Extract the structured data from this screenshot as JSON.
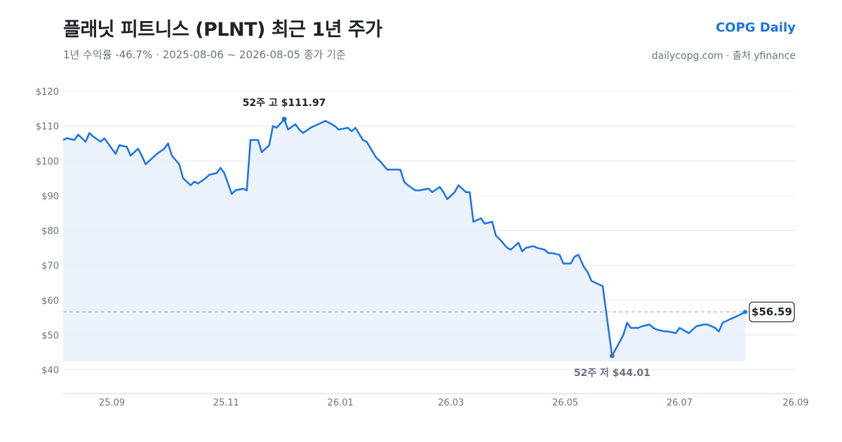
{
  "header": {
    "title": "플래닛 피트니스 (PLNT) 최근 1년 주가",
    "subtitle": "1년 수익률 -46.7%   ·   2025-08-06 ~ 2026-08-05 종가 기준",
    "brand": "COPG Daily",
    "source": "dailycopg.com · 출처 yfinance"
  },
  "colors": {
    "line": "#1a73e8",
    "fill": "#e8f0fc",
    "grid": "#e5e7eb",
    "ref_line": "#9ca3af",
    "high_dot": "#1a73e8",
    "low_dot": "#6b7280"
  },
  "chart_data": {
    "type": "line",
    "ylim": [
      40,
      120
    ],
    "yticks": [
      40,
      50,
      60,
      70,
      80,
      90,
      100,
      110,
      120
    ],
    "ytick_labels": [
      "$40",
      "$50",
      "$60",
      "$70",
      "$80",
      "$90",
      "$100",
      "$110",
      "$120"
    ],
    "xlim": [
      "2025-08-06",
      "2026-09-01"
    ],
    "xticks": [
      "2025-09-01",
      "2025-11-01",
      "2026-01-01",
      "2026-03-01",
      "2026-05-01",
      "2026-07-01",
      "2026-09-01"
    ],
    "xtick_labels": [
      "25.09",
      "25.11",
      "26.01",
      "26.03",
      "26.05",
      "26.07",
      "26.09"
    ],
    "grid": true,
    "series": [
      {
        "x": [
          "2025-08-06",
          "2025-08-08",
          "2025-08-12",
          "2025-08-14",
          "2025-08-18",
          "2025-08-20",
          "2025-08-22",
          "2025-08-26",
          "2025-08-28",
          "2025-09-01",
          "2025-09-03",
          "2025-09-05",
          "2025-09-09",
          "2025-09-11",
          "2025-09-15",
          "2025-09-17",
          "2025-09-19",
          "2025-09-23",
          "2025-09-25",
          "2025-09-29",
          "2025-10-01",
          "2025-10-03",
          "2025-10-07",
          "2025-10-09",
          "2025-10-13",
          "2025-10-15",
          "2025-10-17",
          "2025-10-21",
          "2025-10-23",
          "2025-10-27",
          "2025-10-29",
          "2025-10-31",
          "2025-11-04",
          "2025-11-06",
          "2025-11-10",
          "2025-11-12",
          "2025-11-14",
          "2025-11-18",
          "2025-11-20",
          "2025-11-24",
          "2025-11-26",
          "2025-11-28",
          "2025-12-02",
          "2025-12-04",
          "2025-12-08",
          "2025-12-10",
          "2025-12-12",
          "2025-12-16",
          "2025-12-18",
          "2025-12-22",
          "2025-12-24",
          "2025-12-29",
          "2025-12-31",
          "2026-01-05",
          "2026-01-07",
          "2026-01-09",
          "2026-01-13",
          "2026-01-15",
          "2026-01-20",
          "2026-01-22",
          "2026-01-26",
          "2026-01-28",
          "2026-02-02",
          "2026-02-04",
          "2026-02-06",
          "2026-02-10",
          "2026-02-12",
          "2026-02-17",
          "2026-02-19",
          "2026-02-23",
          "2026-02-25",
          "2026-02-27",
          "2026-03-03",
          "2026-03-05",
          "2026-03-09",
          "2026-03-11",
          "2026-03-13",
          "2026-03-17",
          "2026-03-19",
          "2026-03-23",
          "2026-03-25",
          "2026-03-27",
          "2026-03-31",
          "2026-04-02",
          "2026-04-06",
          "2026-04-08",
          "2026-04-10",
          "2026-04-14",
          "2026-04-16",
          "2026-04-20",
          "2026-04-22",
          "2026-04-24",
          "2026-04-28",
          "2026-04-30",
          "2026-05-04",
          "2026-05-06",
          "2026-05-08",
          "2026-05-11",
          "2026-05-13",
          "2026-05-15",
          "2026-05-19",
          "2026-05-21",
          "2026-05-26",
          "2026-05-28",
          "2026-06-01",
          "2026-06-03",
          "2026-06-05",
          "2026-06-09",
          "2026-06-11",
          "2026-06-15",
          "2026-06-17",
          "2026-06-19",
          "2026-06-23",
          "2026-06-25",
          "2026-06-29",
          "2026-07-01",
          "2026-07-06",
          "2026-07-08",
          "2026-07-10",
          "2026-07-14",
          "2026-07-16",
          "2026-07-20",
          "2026-07-22",
          "2026-07-24",
          "2026-07-28",
          "2026-07-30",
          "2026-08-03",
          "2026-08-05"
        ],
        "values": [
          106.0,
          106.5,
          106.0,
          107.5,
          105.5,
          108.0,
          107.0,
          105.5,
          106.5,
          103.5,
          102.0,
          104.5,
          104.0,
          101.5,
          103.5,
          101.5,
          99.0,
          101.0,
          102.0,
          103.5,
          105.0,
          101.5,
          99.0,
          95.0,
          93.0,
          94.0,
          93.5,
          95.0,
          96.0,
          96.5,
          98.0,
          96.5,
          90.5,
          91.5,
          92.0,
          91.5,
          106.0,
          106.0,
          102.5,
          104.5,
          110.0,
          109.5,
          111.97,
          109.0,
          110.5,
          109.0,
          108.0,
          109.5,
          110.0,
          111.0,
          111.5,
          110.0,
          109.0,
          109.5,
          108.5,
          109.5,
          106.0,
          105.5,
          101.0,
          100.0,
          97.5,
          97.5,
          97.5,
          94.0,
          93.0,
          91.5,
          91.5,
          92.0,
          91.0,
          92.5,
          91.0,
          89.0,
          91.0,
          93.0,
          91.0,
          91.0,
          82.5,
          83.5,
          82.0,
          82.5,
          78.5,
          77.5,
          75.0,
          74.5,
          76.5,
          74.0,
          75.0,
          75.5,
          75.0,
          74.5,
          73.5,
          73.5,
          73.0,
          70.5,
          70.5,
          72.5,
          73.0,
          69.5,
          68.0,
          65.5,
          64.5,
          64.0,
          44.01,
          46.0,
          50.0,
          53.5,
          52.0,
          52.0,
          52.5,
          53.0,
          52.0,
          51.5,
          51.0,
          51.0,
          50.5,
          52.0,
          50.5,
          51.5,
          52.5,
          53.0,
          53.0,
          52.0,
          51.0,
          53.5,
          54.5,
          55.0,
          56.0,
          56.59
        ]
      }
    ],
    "annotations": {
      "high": {
        "x": "2025-12-02",
        "value": 111.97,
        "label": "52주 고 $111.97"
      },
      "low": {
        "x": "2026-05-26",
        "value": 44.01,
        "label": "52주 저 $44.01"
      },
      "last": {
        "value": 56.59,
        "label": "$56.59"
      }
    }
  }
}
